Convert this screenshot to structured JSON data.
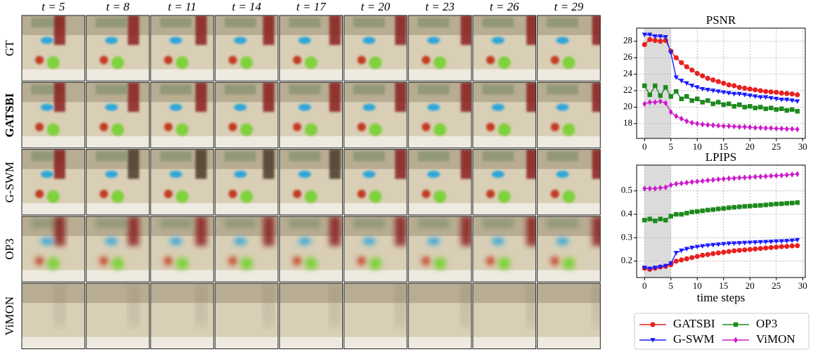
{
  "image_grid": {
    "columns": [
      "t = 5",
      "t = 8",
      "t = 11",
      "t = 14",
      "t = 17",
      "t = 20",
      "t = 23",
      "t = 26",
      "t = 29"
    ],
    "rows": [
      "GT",
      "GATSBI",
      "G-SWM",
      "OP3",
      "ViMON"
    ]
  },
  "chart_data": [
    {
      "type": "line",
      "title": "PSNR",
      "x": [
        0,
        1,
        2,
        3,
        4,
        5,
        6,
        7,
        8,
        9,
        10,
        11,
        12,
        13,
        14,
        15,
        16,
        17,
        18,
        19,
        20,
        21,
        22,
        23,
        24,
        25,
        26,
        27,
        28,
        29
      ],
      "xlim": [
        -1.5,
        30.5
      ],
      "xticks": [
        0,
        5,
        10,
        15,
        20,
        25,
        30
      ],
      "ylim": [
        16.2,
        29.6
      ],
      "yticks": [
        18,
        20,
        22,
        24,
        26,
        28
      ],
      "grid": true,
      "shaded_span": [
        0,
        5
      ],
      "series": [
        {
          "name": "GATSBI",
          "color": "#e8211f",
          "marker": "circle",
          "values": [
            27.6,
            28.2,
            28.1,
            28.0,
            28.1,
            26.8,
            26.0,
            25.4,
            24.9,
            24.5,
            24.1,
            23.8,
            23.5,
            23.3,
            23.1,
            22.9,
            22.7,
            22.6,
            22.4,
            22.3,
            22.2,
            22.1,
            22.0,
            21.9,
            21.85,
            21.8,
            21.7,
            21.65,
            21.6,
            21.5
          ]
        },
        {
          "name": "G-SWM",
          "color": "#1a1aff",
          "marker": "triangle-down",
          "values": [
            28.8,
            28.8,
            28.6,
            28.6,
            28.5,
            26.6,
            23.6,
            23.2,
            22.9,
            22.6,
            22.4,
            22.2,
            22.1,
            22.0,
            21.9,
            21.8,
            21.7,
            21.6,
            21.6,
            21.5,
            21.4,
            21.3,
            21.2,
            21.2,
            21.1,
            21.0,
            20.9,
            20.9,
            20.8,
            20.7
          ]
        },
        {
          "name": "OP3",
          "color": "#1e8a1e",
          "marker": "square",
          "values": [
            22.6,
            21.5,
            22.6,
            21.4,
            22.4,
            21.3,
            21.9,
            21.0,
            21.3,
            20.8,
            21.0,
            20.6,
            20.8,
            20.4,
            20.6,
            20.3,
            20.4,
            20.1,
            20.3,
            20.0,
            20.1,
            19.9,
            20.0,
            19.8,
            19.9,
            19.7,
            19.8,
            19.6,
            19.7,
            19.5
          ]
        },
        {
          "name": "ViMON",
          "color": "#cc1acc",
          "marker": "diamond",
          "values": [
            20.4,
            20.6,
            20.6,
            20.7,
            20.5,
            19.4,
            18.9,
            18.6,
            18.3,
            18.1,
            18.0,
            17.9,
            17.85,
            17.8,
            17.75,
            17.7,
            17.7,
            17.65,
            17.6,
            17.6,
            17.55,
            17.5,
            17.5,
            17.45,
            17.45,
            17.4,
            17.4,
            17.35,
            17.35,
            17.3
          ]
        }
      ]
    },
    {
      "type": "line",
      "title": "LPIPS",
      "x_label": "time steps",
      "x": [
        0,
        1,
        2,
        3,
        4,
        5,
        6,
        7,
        8,
        9,
        10,
        11,
        12,
        13,
        14,
        15,
        16,
        17,
        18,
        19,
        20,
        21,
        22,
        23,
        24,
        25,
        26,
        27,
        28,
        29
      ],
      "xlim": [
        -1.5,
        30.5
      ],
      "xticks": [
        0,
        5,
        10,
        15,
        20,
        25,
        30
      ],
      "ylim": [
        0.13,
        0.61
      ],
      "yticks": [
        0.2,
        0.3,
        0.4,
        0.5
      ],
      "grid": true,
      "shaded_span": [
        0,
        5
      ],
      "series": [
        {
          "color": "#e8211f",
          "marker": "circle",
          "values": [
            0.17,
            0.165,
            0.17,
            0.175,
            0.178,
            0.185,
            0.2,
            0.205,
            0.21,
            0.215,
            0.22,
            0.225,
            0.228,
            0.232,
            0.235,
            0.238,
            0.241,
            0.244,
            0.246,
            0.248,
            0.25,
            0.252,
            0.254,
            0.256,
            0.258,
            0.26,
            0.262,
            0.263,
            0.265,
            0.266
          ]
        },
        {
          "color": "#1a1aff",
          "marker": "triangle-down",
          "values": [
            0.172,
            0.168,
            0.172,
            0.175,
            0.18,
            0.19,
            0.235,
            0.245,
            0.252,
            0.257,
            0.261,
            0.264,
            0.267,
            0.269,
            0.271,
            0.273,
            0.275,
            0.276,
            0.277,
            0.278,
            0.279,
            0.28,
            0.281,
            0.282,
            0.283,
            0.284,
            0.285,
            0.286,
            0.288,
            0.29
          ]
        },
        {
          "color": "#1e8a1e",
          "marker": "square",
          "values": [
            0.375,
            0.38,
            0.372,
            0.38,
            0.375,
            0.392,
            0.4,
            0.4,
            0.405,
            0.41,
            0.412,
            0.415,
            0.418,
            0.42,
            0.423,
            0.425,
            0.428,
            0.43,
            0.432,
            0.434,
            0.435,
            0.437,
            0.438,
            0.44,
            0.442,
            0.444,
            0.445,
            0.447,
            0.448,
            0.45
          ]
        },
        {
          "color": "#cc1acc",
          "marker": "diamond",
          "values": [
            0.51,
            0.51,
            0.51,
            0.513,
            0.515,
            0.525,
            0.53,
            0.532,
            0.535,
            0.538,
            0.54,
            0.542,
            0.545,
            0.547,
            0.549,
            0.551,
            0.553,
            0.554,
            0.556,
            0.557,
            0.558,
            0.56,
            0.561,
            0.562,
            0.564,
            0.565,
            0.566,
            0.568,
            0.57,
            0.572
          ]
        }
      ]
    }
  ]
}
